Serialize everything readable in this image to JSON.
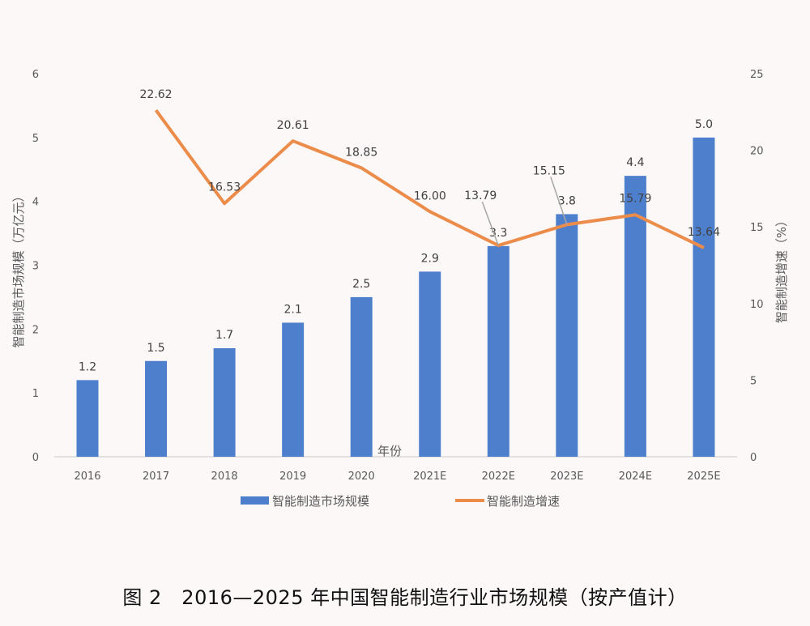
{
  "chart_data": {
    "type": "bar+line",
    "categories": [
      "2016",
      "2017",
      "2018",
      "2019",
      "2020",
      "2021E",
      "2022E",
      "2023E",
      "2024E",
      "2025E"
    ],
    "series": [
      {
        "name": "智能制造市场规模",
        "type": "bar",
        "axis": "left",
        "color": "#4e7fcd",
        "values": [
          1.2,
          1.5,
          1.7,
          2.1,
          2.5,
          2.9,
          3.3,
          3.8,
          4.4,
          5.0
        ],
        "labels": [
          "1.2",
          "1.5",
          "1.7",
          "2.1",
          "2.5",
          "2.9",
          "3.3",
          "3.8",
          "4.4",
          "5.0"
        ]
      },
      {
        "name": "智能制造增速",
        "type": "line",
        "axis": "right",
        "color": "#ec8c4a",
        "values": [
          null,
          22.62,
          16.53,
          20.61,
          18.85,
          16.0,
          13.79,
          15.15,
          15.79,
          13.64
        ],
        "labels": [
          "",
          "22.62",
          "16.53",
          "20.61",
          "18.85",
          "16.00",
          "13.79",
          "15.15",
          "15.79",
          "13.64"
        ]
      }
    ],
    "xlabel": "年份",
    "ylabel": "智能制造市场规模（万亿元）",
    "y2label": "智能制造增速（%）",
    "ylim": [
      0,
      6
    ],
    "y2lim": [
      0,
      25
    ],
    "yticks": [
      "0",
      "1",
      "2",
      "3",
      "4",
      "5",
      "6"
    ],
    "y2ticks": [
      "0",
      "5",
      "10",
      "15",
      "20",
      "25"
    ],
    "grid": false,
    "legend": "bottom"
  },
  "caption": "图 2　2016—2025 年中国智能制造行业市场规模（按产值计）"
}
